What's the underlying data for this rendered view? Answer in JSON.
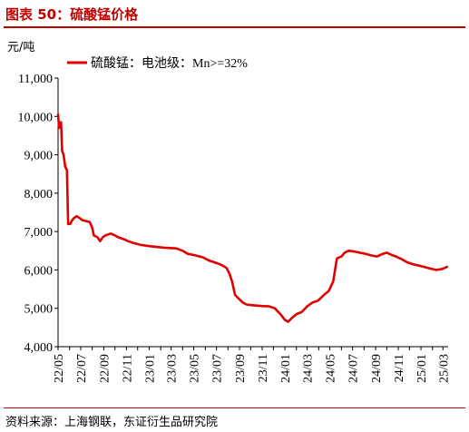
{
  "figure": {
    "title": "图表 50：硫酸锰价格",
    "source": "资料来源：上海钢联，东证衍生品研究院"
  },
  "chart_data": {
    "type": "line",
    "ylabel": "元/吨",
    "ylim": [
      4000,
      11000
    ],
    "yticks": [
      4000,
      5000,
      6000,
      7000,
      8000,
      9000,
      10000,
      11000
    ],
    "ytick_labels": [
      "4,000",
      "5,000",
      "6,000",
      "7,000",
      "8,000",
      "9,000",
      "10,000",
      "11,000"
    ],
    "xticks": [
      "22/05",
      "22/07",
      "22/09",
      "22/11",
      "23/01",
      "23/03",
      "23/05",
      "23/07",
      "23/09",
      "23/11",
      "24/01",
      "24/03",
      "24/05",
      "24/07",
      "24/09",
      "24/11",
      "25/01",
      "25/03"
    ],
    "xlim": [
      "2022-05-01",
      "2025-03-15"
    ],
    "legend_position": "top-left",
    "color": "#e00000",
    "series": [
      {
        "name": "硫酸锰：电池级：Mn>=32%",
        "points": [
          [
            "2022-05-01",
            10050
          ],
          [
            "2022-05-04",
            9700
          ],
          [
            "2022-05-07",
            9800
          ],
          [
            "2022-05-09",
            9850
          ],
          [
            "2022-05-12",
            9100
          ],
          [
            "2022-05-16",
            9000
          ],
          [
            "2022-05-20",
            8700
          ],
          [
            "2022-05-25",
            8600
          ],
          [
            "2022-05-28",
            7200
          ],
          [
            "2022-06-03",
            7200
          ],
          [
            "2022-06-08",
            7300
          ],
          [
            "2022-06-13",
            7350
          ],
          [
            "2022-06-20",
            7400
          ],
          [
            "2022-06-28",
            7350
          ],
          [
            "2022-07-05",
            7300
          ],
          [
            "2022-07-25",
            7250
          ],
          [
            "2022-08-01",
            7100
          ],
          [
            "2022-08-05",
            6900
          ],
          [
            "2022-08-15",
            6850
          ],
          [
            "2022-08-22",
            6750
          ],
          [
            "2022-08-29",
            6850
          ],
          [
            "2022-09-05",
            6900
          ],
          [
            "2022-09-20",
            6950
          ],
          [
            "2022-10-01",
            6900
          ],
          [
            "2022-10-10",
            6850
          ],
          [
            "2022-10-25",
            6800
          ],
          [
            "2022-11-05",
            6750
          ],
          [
            "2022-11-20",
            6700
          ],
          [
            "2022-12-10",
            6650
          ],
          [
            "2023-01-01",
            6620
          ],
          [
            "2023-02-10",
            6580
          ],
          [
            "2023-03-15",
            6560
          ],
          [
            "2023-04-01",
            6500
          ],
          [
            "2023-04-15",
            6420
          ],
          [
            "2023-05-05",
            6380
          ],
          [
            "2023-05-25",
            6330
          ],
          [
            "2023-06-10",
            6250
          ],
          [
            "2023-06-25",
            6200
          ],
          [
            "2023-07-10",
            6150
          ],
          [
            "2023-07-20",
            6100
          ],
          [
            "2023-07-28",
            6050
          ],
          [
            "2023-08-05",
            5900
          ],
          [
            "2023-08-12",
            5700
          ],
          [
            "2023-08-20",
            5350
          ],
          [
            "2023-08-30",
            5250
          ],
          [
            "2023-09-10",
            5150
          ],
          [
            "2023-09-20",
            5100
          ],
          [
            "2023-10-05",
            5080
          ],
          [
            "2023-11-01",
            5060
          ],
          [
            "2023-11-20",
            5050
          ],
          [
            "2023-12-05",
            5000
          ],
          [
            "2023-12-20",
            4850
          ],
          [
            "2024-01-01",
            4700
          ],
          [
            "2024-01-10",
            4650
          ],
          [
            "2024-01-20",
            4750
          ],
          [
            "2024-02-01",
            4850
          ],
          [
            "2024-02-15",
            4900
          ],
          [
            "2024-03-01",
            5050
          ],
          [
            "2024-03-15",
            5150
          ],
          [
            "2024-03-30",
            5200
          ],
          [
            "2024-04-15",
            5350
          ],
          [
            "2024-04-28",
            5450
          ],
          [
            "2024-05-10",
            5700
          ],
          [
            "2024-05-20",
            6300
          ],
          [
            "2024-06-01",
            6350
          ],
          [
            "2024-06-10",
            6450
          ],
          [
            "2024-06-20",
            6500
          ],
          [
            "2024-07-05",
            6480
          ],
          [
            "2024-07-20",
            6450
          ],
          [
            "2024-08-05",
            6420
          ],
          [
            "2024-08-20",
            6380
          ],
          [
            "2024-09-05",
            6350
          ],
          [
            "2024-09-20",
            6420
          ],
          [
            "2024-10-01",
            6450
          ],
          [
            "2024-10-12",
            6400
          ],
          [
            "2024-10-25",
            6350
          ],
          [
            "2024-11-10",
            6280
          ],
          [
            "2024-11-25",
            6200
          ],
          [
            "2024-12-10",
            6150
          ],
          [
            "2025-01-01",
            6100
          ],
          [
            "2025-01-20",
            6050
          ],
          [
            "2025-02-10",
            6000
          ],
          [
            "2025-02-25",
            6020
          ],
          [
            "2025-03-05",
            6050
          ],
          [
            "2025-03-12",
            6080
          ]
        ]
      }
    ]
  }
}
